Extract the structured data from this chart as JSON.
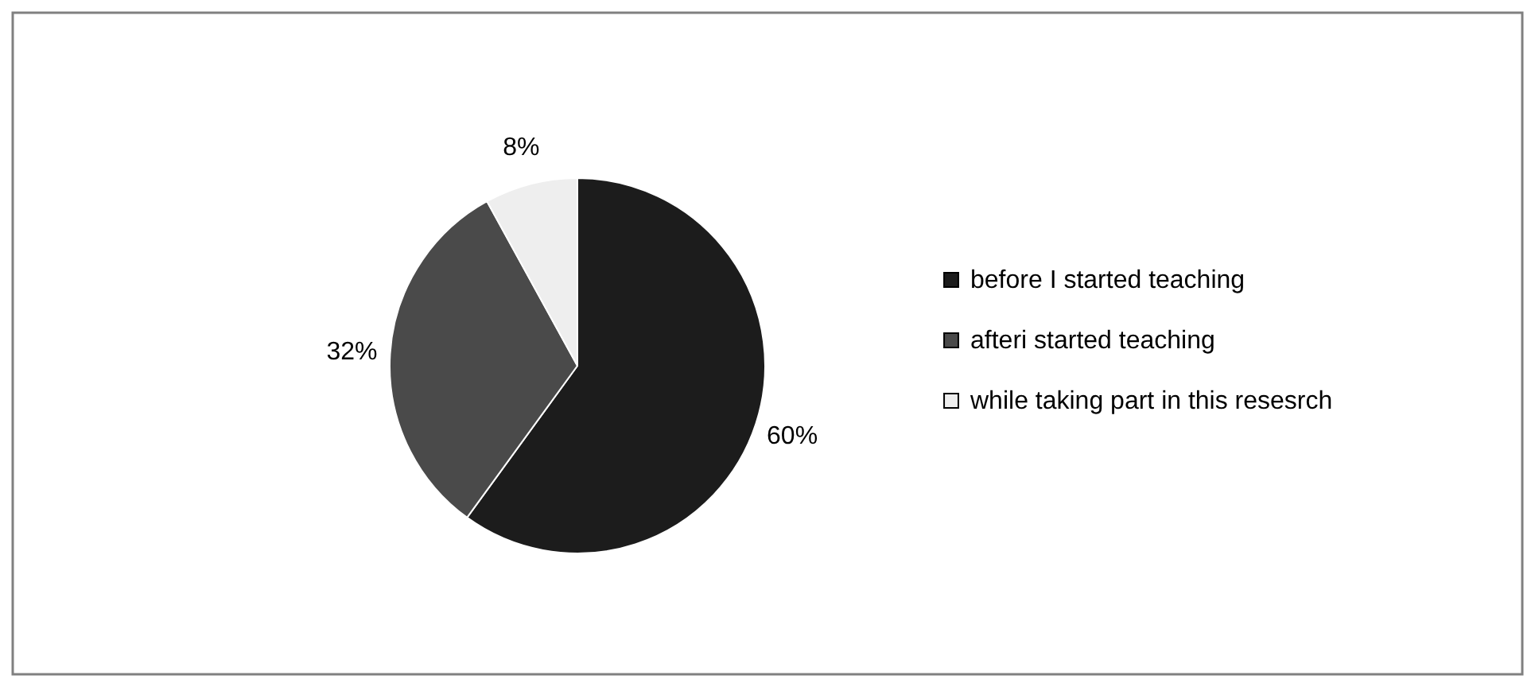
{
  "chart_data": {
    "type": "pie",
    "categories": [
      "before I started teaching",
      "afteri started teaching",
      "while taking part in this resesrch"
    ],
    "values": [
      60,
      32,
      8
    ],
    "colors": [
      "#1c1c1c",
      "#4a4a4a",
      "#eeeeee"
    ],
    "value_labels": [
      "60%",
      "32%",
      "8%"
    ],
    "legend": "right"
  }
}
